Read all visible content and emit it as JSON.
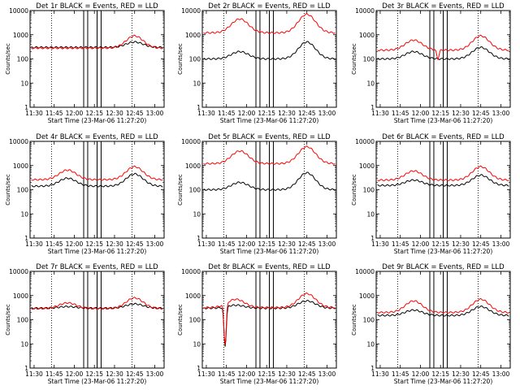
{
  "chart_data": [
    {
      "type": "line",
      "title": "Det 1r BLACK = Events, RED = LLD",
      "xlabel": "Start Time (23-Mar-06 11:27:20)",
      "ylabel": "Counts/sec",
      "xlim": [
        "11:27",
        "13:07"
      ],
      "ylim": [
        1,
        10000
      ],
      "yscale": "log",
      "x_ticks": [
        "11:30",
        "11:45",
        "12:00",
        "12:15",
        "12:30",
        "12:45",
        "13:00"
      ],
      "y_ticks": [
        "1",
        "10",
        "100",
        "1000",
        "10000"
      ],
      "dotted_vlines": [
        "11:43",
        "12:43"
      ],
      "solid_vlines": [
        "12:07",
        "12:10",
        "12:17",
        "12:20"
      ],
      "lld_base": 280,
      "event_base": 300,
      "lld_peaks": [
        [
          "12:45",
          900
        ]
      ],
      "event_peaks": [
        [
          "12:45",
          500
        ]
      ],
      "dips": [],
      "series": [
        {
          "name": "Events",
          "color": "#000000",
          "values": []
        },
        {
          "name": "LLD",
          "color": "#ff0000",
          "values": []
        }
      ]
    },
    {
      "type": "line",
      "title": "Det 2r BLACK = Events, RED = LLD",
      "xlabel": "Start Time (23-Mar-06 11:27:20)",
      "ylabel": "Counts/sec",
      "xlim": [
        "11:27",
        "13:07"
      ],
      "ylim": [
        1,
        10000
      ],
      "yscale": "log",
      "x_ticks": [
        "11:30",
        "11:45",
        "12:00",
        "12:15",
        "12:30",
        "12:45",
        "13:00"
      ],
      "y_ticks": [
        "1",
        "10",
        "100",
        "1000",
        "10000"
      ],
      "dotted_vlines": [
        "11:43",
        "12:43"
      ],
      "solid_vlines": [
        "12:07",
        "12:10",
        "12:17",
        "12:20"
      ],
      "lld_base": 1200,
      "event_base": 100,
      "lld_peaks": [
        [
          "11:55",
          4500
        ],
        [
          "12:45",
          7000
        ]
      ],
      "event_peaks": [
        [
          "11:55",
          200
        ],
        [
          "12:45",
          500
        ]
      ],
      "dips": [],
      "series": [
        {
          "name": "Events",
          "color": "#000000",
          "values": []
        },
        {
          "name": "LLD",
          "color": "#ff0000",
          "values": []
        }
      ]
    },
    {
      "type": "line",
      "title": "Det 3r BLACK = Events, RED = LLD",
      "xlabel": "Start Time (23-Mar-06 11:27:20)",
      "ylabel": "Counts/sec",
      "xlim": [
        "11:27",
        "13:07"
      ],
      "ylim": [
        1,
        10000
      ],
      "yscale": "log",
      "x_ticks": [
        "11:30",
        "11:45",
        "12:00",
        "12:15",
        "12:30",
        "12:45",
        "13:00"
      ],
      "y_ticks": [
        "1",
        "10",
        "100",
        "1000",
        "10000"
      ],
      "dotted_vlines": [
        "11:43",
        "12:43"
      ],
      "solid_vlines": [
        "12:07",
        "12:10",
        "12:17",
        "12:20"
      ],
      "lld_base": 230,
      "event_base": 100,
      "lld_peaks": [
        [
          "11:55",
          600
        ],
        [
          "12:45",
          900
        ]
      ],
      "event_peaks": [
        [
          "11:55",
          200
        ],
        [
          "12:45",
          300
        ]
      ],
      "dips": [
        [
          "12:13",
          100
        ]
      ],
      "series": [
        {
          "name": "Events",
          "color": "#000000",
          "values": []
        },
        {
          "name": "LLD",
          "color": "#ff0000",
          "values": []
        }
      ]
    },
    {
      "type": "line",
      "title": "Det 4r BLACK = Events, RED = LLD",
      "xlabel": "Start Time (23-Mar-06 11:27:20)",
      "ylabel": "Counts/sec",
      "xlim": [
        "11:27",
        "13:07"
      ],
      "ylim": [
        1,
        10000
      ],
      "yscale": "log",
      "x_ticks": [
        "11:30",
        "11:45",
        "12:00",
        "12:15",
        "12:30",
        "12:45",
        "13:00"
      ],
      "y_ticks": [
        "1",
        "10",
        "100",
        "1000",
        "10000"
      ],
      "dotted_vlines": [
        "11:43",
        "12:43"
      ],
      "solid_vlines": [
        "12:07",
        "12:10",
        "12:17",
        "12:20"
      ],
      "lld_base": 260,
      "event_base": 140,
      "lld_peaks": [
        [
          "11:55",
          650
        ],
        [
          "12:45",
          900
        ]
      ],
      "event_peaks": [
        [
          "11:55",
          300
        ],
        [
          "12:45",
          450
        ]
      ],
      "dips": [],
      "series": [
        {
          "name": "Events",
          "color": "#000000",
          "values": []
        },
        {
          "name": "LLD",
          "color": "#ff0000",
          "values": []
        }
      ]
    },
    {
      "type": "line",
      "title": "Det 5r BLACK = Events, RED = LLD",
      "xlabel": "Start Time (23-Mar-06 11:27:20)",
      "ylabel": "Counts/sec",
      "xlim": [
        "11:27",
        "13:07"
      ],
      "ylim": [
        1,
        10000
      ],
      "yscale": "log",
      "x_ticks": [
        "11:30",
        "11:45",
        "12:00",
        "12:15",
        "12:30",
        "12:45",
        "13:00"
      ],
      "y_ticks": [
        "1",
        "10",
        "100",
        "1000",
        "10000"
      ],
      "dotted_vlines": [
        "11:43",
        "12:43"
      ],
      "solid_vlines": [
        "12:07",
        "12:10",
        "12:17",
        "12:20"
      ],
      "lld_base": 1200,
      "event_base": 100,
      "lld_peaks": [
        [
          "11:55",
          4000
        ],
        [
          "12:45",
          6000
        ]
      ],
      "event_peaks": [
        [
          "11:55",
          200
        ],
        [
          "12:45",
          500
        ]
      ],
      "dips": [],
      "series": [
        {
          "name": "Events",
          "color": "#000000",
          "values": []
        },
        {
          "name": "LLD",
          "color": "#ff0000",
          "values": []
        }
      ]
    },
    {
      "type": "line",
      "title": "Det 6r BLACK = Events, RED = LLD",
      "xlabel": "Start Time (23-Mar-06 11:27:20)",
      "ylabel": "Counts/sec",
      "xlim": [
        "11:27",
        "13:07"
      ],
      "ylim": [
        1,
        10000
      ],
      "yscale": "log",
      "x_ticks": [
        "11:30",
        "11:45",
        "12:00",
        "12:15",
        "12:30",
        "12:45",
        "13:00"
      ],
      "y_ticks": [
        "1",
        "10",
        "100",
        "1000",
        "10000"
      ],
      "dotted_vlines": [
        "11:43",
        "12:43"
      ],
      "solid_vlines": [
        "12:07",
        "12:10",
        "12:17",
        "12:20"
      ],
      "lld_base": 250,
      "event_base": 150,
      "lld_peaks": [
        [
          "11:55",
          600
        ],
        [
          "12:45",
          900
        ]
      ],
      "event_peaks": [
        [
          "11:55",
          250
        ],
        [
          "12:45",
          400
        ]
      ],
      "dips": [],
      "series": [
        {
          "name": "Events",
          "color": "#000000",
          "values": []
        },
        {
          "name": "LLD",
          "color": "#ff0000",
          "values": []
        }
      ]
    },
    {
      "type": "line",
      "title": "Det 7r BLACK = Events, RED = LLD",
      "xlabel": "Start Time (23-Mar-06 11:27:20)",
      "ylabel": "Counts/sec",
      "xlim": [
        "11:27",
        "13:07"
      ],
      "ylim": [
        1,
        10000
      ],
      "yscale": "log",
      "x_ticks": [
        "11:30",
        "11:45",
        "12:00",
        "12:15",
        "12:30",
        "12:45",
        "13:00"
      ],
      "y_ticks": [
        "1",
        "10",
        "100",
        "1000",
        "10000"
      ],
      "dotted_vlines": [
        "11:43",
        "12:43"
      ],
      "solid_vlines": [
        "12:07",
        "12:10",
        "12:17",
        "12:20"
      ],
      "lld_base": 290,
      "event_base": 300,
      "lld_peaks": [
        [
          "11:55",
          500
        ],
        [
          "12:45",
          800
        ]
      ],
      "event_peaks": [
        [
          "11:55",
          350
        ],
        [
          "12:45",
          450
        ]
      ],
      "dips": [],
      "series": [
        {
          "name": "Events",
          "color": "#000000",
          "values": []
        },
        {
          "name": "LLD",
          "color": "#ff0000",
          "values": []
        }
      ]
    },
    {
      "type": "line",
      "title": "Det 8r BLACK = Events, RED = LLD",
      "xlabel": "Start Time (23-Mar-06 11:27:20)",
      "ylabel": "Counts/sec",
      "xlim": [
        "11:27",
        "13:07"
      ],
      "ylim": [
        1,
        10000
      ],
      "yscale": "log",
      "x_ticks": [
        "11:30",
        "11:45",
        "12:00",
        "12:15",
        "12:30",
        "12:45",
        "13:00"
      ],
      "y_ticks": [
        "1",
        "10",
        "100",
        "1000",
        "10000"
      ],
      "dotted_vlines": [
        "11:43",
        "12:43"
      ],
      "solid_vlines": [
        "12:07",
        "12:10",
        "12:17",
        "12:20"
      ],
      "lld_base": 320,
      "event_base": 300,
      "lld_peaks": [
        [
          "11:52",
          700
        ],
        [
          "12:45",
          1200
        ]
      ],
      "event_peaks": [
        [
          "11:52",
          400
        ],
        [
          "12:45",
          600
        ]
      ],
      "dips": [
        [
          "11:44",
          7
        ]
      ],
      "series": [
        {
          "name": "Events",
          "color": "#000000",
          "values": []
        },
        {
          "name": "LLD",
          "color": "#ff0000",
          "values": []
        }
      ]
    },
    {
      "type": "line",
      "title": "Det 9r BLACK = Events, RED = LLD",
      "xlabel": "Start Time (23-Mar-06 11:27:20)",
      "ylabel": "Counts/sec",
      "xlim": [
        "11:27",
        "13:07"
      ],
      "ylim": [
        1,
        10000
      ],
      "yscale": "log",
      "x_ticks": [
        "11:30",
        "11:45",
        "12:00",
        "12:15",
        "12:30",
        "12:45",
        "13:00"
      ],
      "y_ticks": [
        "1",
        "10",
        "100",
        "1000",
        "10000"
      ],
      "dotted_vlines": [
        "11:43",
        "12:43"
      ],
      "solid_vlines": [
        "12:07",
        "12:10",
        "12:17",
        "12:20"
      ],
      "lld_base": 200,
      "event_base": 150,
      "lld_peaks": [
        [
          "11:55",
          600
        ],
        [
          "12:45",
          700
        ]
      ],
      "event_peaks": [
        [
          "11:55",
          250
        ],
        [
          "12:45",
          350
        ]
      ],
      "dips": [],
      "series": [
        {
          "name": "Events",
          "color": "#000000",
          "values": []
        },
        {
          "name": "LLD",
          "color": "#ff0000",
          "values": []
        }
      ]
    }
  ]
}
